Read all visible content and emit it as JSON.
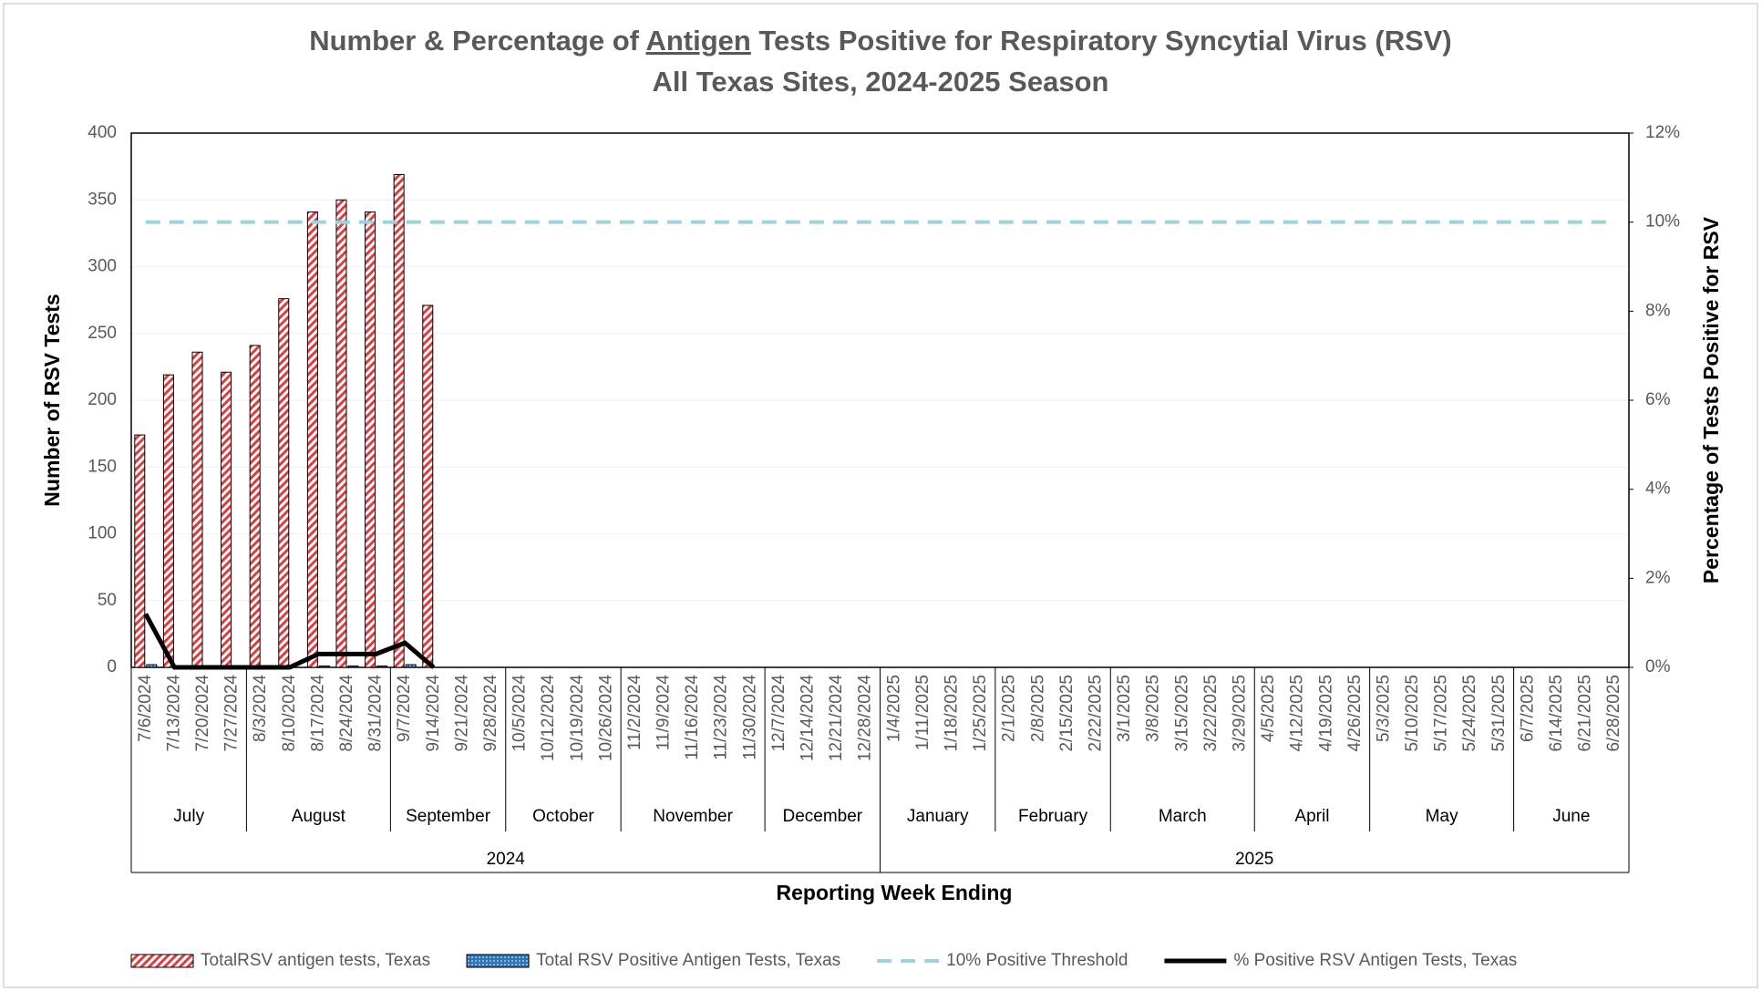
{
  "chart_data": {
    "type": "bar",
    "title_parts": [
      "Number & Percentage of ",
      "Antigen",
      " Tests Positive for Respiratory Syncytial Virus (RSV)"
    ],
    "subtitle": "All Texas Sites, 2024-2025 Season",
    "xlabel": "Reporting Week Ending",
    "ylabel": "Number of RSV Tests",
    "y2label": "Percentage of Tests Positive for RSV",
    "categories": [
      "7/6/2024",
      "7/13/2024",
      "7/20/2024",
      "7/27/2024",
      "8/3/2024",
      "8/10/2024",
      "8/17/2024",
      "8/24/2024",
      "8/31/2024",
      "9/7/2024",
      "9/14/2024",
      "9/21/2024",
      "9/28/2024",
      "10/5/2024",
      "10/12/2024",
      "10/19/2024",
      "10/26/2024",
      "11/2/2024",
      "11/9/2024",
      "11/16/2024",
      "11/23/2024",
      "11/30/2024",
      "12/7/2024",
      "12/14/2024",
      "12/21/2024",
      "12/28/2024",
      "1/4/2025",
      "1/11/2025",
      "1/18/2025",
      "1/25/2025",
      "2/1/2025",
      "2/8/2025",
      "2/15/2025",
      "2/22/2025",
      "3/1/2025",
      "3/8/2025",
      "3/15/2025",
      "3/22/2025",
      "3/29/2025",
      "4/5/2025",
      "4/12/2025",
      "4/19/2025",
      "4/26/2025",
      "5/3/2025",
      "5/10/2025",
      "5/17/2025",
      "5/24/2025",
      "5/31/2025",
      "6/7/2025",
      "6/14/2025",
      "6/21/2025",
      "6/28/2025"
    ],
    "month_labels": [
      "July",
      "August",
      "September",
      "October",
      "November",
      "December",
      "January",
      "February",
      "March",
      "April",
      "May",
      "June"
    ],
    "year_labels": [
      "2024",
      "2025"
    ],
    "ylim": [
      0,
      400
    ],
    "yticks": [
      0,
      50,
      100,
      150,
      200,
      250,
      300,
      350,
      400
    ],
    "y2lim": [
      0,
      12
    ],
    "y2ticks": [
      {
        "value": 0,
        "label": "0%"
      },
      {
        "value": 2,
        "label": "2%"
      },
      {
        "value": 4,
        "label": "4%"
      },
      {
        "value": 6,
        "label": "6%"
      },
      {
        "value": 8,
        "label": "8%"
      },
      {
        "value": 10,
        "label": "10%"
      },
      {
        "value": 12,
        "label": "12%"
      }
    ],
    "grid": true,
    "series": [
      {
        "name": "TotalRSV antigen tests, Texas",
        "type": "bar",
        "style": "hatch",
        "color": "#e03c3c",
        "values": [
          174,
          219,
          236,
          221,
          241,
          276,
          341,
          350,
          341,
          369,
          271,
          null,
          null,
          null,
          null,
          null,
          null,
          null,
          null,
          null,
          null,
          null,
          null,
          null,
          null,
          null,
          null,
          null,
          null,
          null,
          null,
          null,
          null,
          null,
          null,
          null,
          null,
          null,
          null,
          null,
          null,
          null,
          null,
          null,
          null,
          null,
          null,
          null,
          null,
          null,
          null,
          null
        ]
      },
      {
        "name": "Total RSV Positive Antigen Tests, Texas",
        "type": "bar",
        "style": "dots",
        "color": "#2e75b6",
        "values": [
          2,
          0,
          0,
          0,
          0,
          0,
          1,
          1,
          1,
          2,
          0,
          null,
          null,
          null,
          null,
          null,
          null,
          null,
          null,
          null,
          null,
          null,
          null,
          null,
          null,
          null,
          null,
          null,
          null,
          null,
          null,
          null,
          null,
          null,
          null,
          null,
          null,
          null,
          null,
          null,
          null,
          null,
          null,
          null,
          null,
          null,
          null,
          null,
          null,
          null,
          null,
          null
        ]
      },
      {
        "name": "10% Positive Threshold",
        "type": "line",
        "style": "dashed",
        "axis": "y2",
        "color": "#9dd3df",
        "values": [
          10,
          10,
          10,
          10,
          10,
          10,
          10,
          10,
          10,
          10,
          10,
          10,
          10,
          10,
          10,
          10,
          10,
          10,
          10,
          10,
          10,
          10,
          10,
          10,
          10,
          10,
          10,
          10,
          10,
          10,
          10,
          10,
          10,
          10,
          10,
          10,
          10,
          10,
          10,
          10,
          10,
          10,
          10,
          10,
          10,
          10,
          10,
          10,
          10,
          10,
          10,
          10
        ]
      },
      {
        "name": "% Positive RSV Antigen Tests, Texas",
        "type": "line",
        "style": "solid",
        "axis": "y2",
        "color": "#000000",
        "values": [
          1.2,
          0,
          0,
          0,
          0,
          0,
          0.3,
          0.3,
          0.3,
          0.55,
          0,
          null,
          null,
          null,
          null,
          null,
          null,
          null,
          null,
          null,
          null,
          null,
          null,
          null,
          null,
          null,
          null,
          null,
          null,
          null,
          null,
          null,
          null,
          null,
          null,
          null,
          null,
          null,
          null,
          null,
          null,
          null,
          null,
          null,
          null,
          null,
          null,
          null,
          null,
          null,
          null,
          null
        ]
      }
    ]
  }
}
